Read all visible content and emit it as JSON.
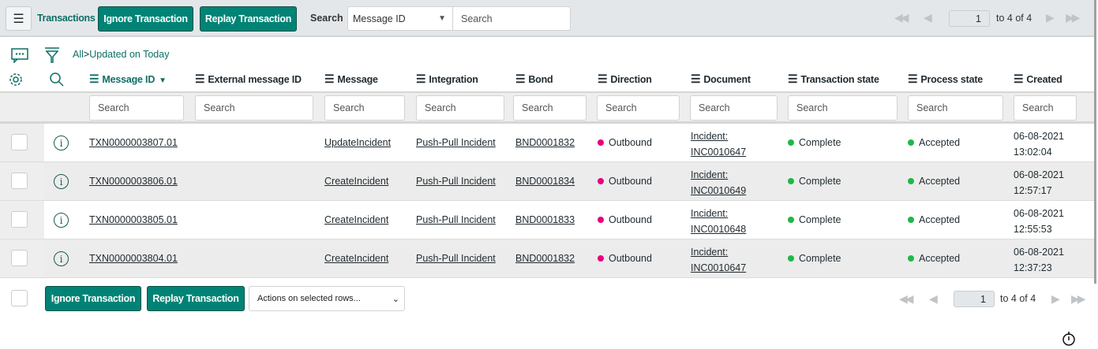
{
  "toolbar": {
    "title": "Transactions",
    "ignore_label": "Ignore Transaction",
    "replay_label": "Replay Transaction",
    "search_label": "Search",
    "search_field": "Message ID",
    "search_placeholder": "Search",
    "page": "1",
    "page_range": "to 4 of 4"
  },
  "breadcrumb": {
    "all": "All",
    "separator": ">",
    "filter": "Updated on Today"
  },
  "columns": [
    {
      "label": "Message ID",
      "sorted": "desc"
    },
    {
      "label": "External message ID"
    },
    {
      "label": "Message"
    },
    {
      "label": "Integration"
    },
    {
      "label": "Bond"
    },
    {
      "label": "Direction"
    },
    {
      "label": "Document"
    },
    {
      "label": "Transaction state"
    },
    {
      "label": "Process state"
    },
    {
      "label": "Created"
    }
  ],
  "filter_placeholder": "Search",
  "rows": [
    {
      "message_id": "TXN0000003807.01",
      "external_id": "",
      "message": "UpdateIncident",
      "integration": "Push-Pull Incident",
      "bond": "BND0001832",
      "direction": "Outbound",
      "document_1": "Incident:",
      "document_2": "INC0010647",
      "transaction_state": "Complete",
      "process_state": "Accepted",
      "created_date": "06-08-2021",
      "created_time": "13:02:04"
    },
    {
      "message_id": "TXN0000003806.01",
      "external_id": "",
      "message": "CreateIncident",
      "integration": "Push-Pull Incident",
      "bond": "BND0001834",
      "direction": "Outbound",
      "document_1": "Incident:",
      "document_2": "INC0010649",
      "transaction_state": "Complete",
      "process_state": "Accepted",
      "created_date": "06-08-2021",
      "created_time": "12:57:17"
    },
    {
      "message_id": "TXN0000003805.01",
      "external_id": "",
      "message": "CreateIncident",
      "integration": "Push-Pull Incident",
      "bond": "BND0001833",
      "direction": "Outbound",
      "document_1": "Incident:",
      "document_2": "INC0010648",
      "transaction_state": "Complete",
      "process_state": "Accepted",
      "created_date": "06-08-2021",
      "created_time": "12:55:53"
    },
    {
      "message_id": "TXN0000003804.01",
      "external_id": "",
      "message": "CreateIncident",
      "integration": "Push-Pull Incident",
      "bond": "BND0001832",
      "direction": "Outbound",
      "document_1": "Incident:",
      "document_2": "INC0010647",
      "transaction_state": "Complete",
      "process_state": "Accepted",
      "created_date": "06-08-2021",
      "created_time": "12:37:23"
    }
  ],
  "footer": {
    "ignore_label": "Ignore Transaction",
    "replay_label": "Replay Transaction",
    "actions_select": "Actions on selected rows...",
    "page": "1",
    "page_range": "to 4 of 4"
  },
  "colors": {
    "accent": "#008375",
    "outbound": "#e6007e",
    "complete": "#1fb848",
    "accepted": "#1fb848"
  }
}
